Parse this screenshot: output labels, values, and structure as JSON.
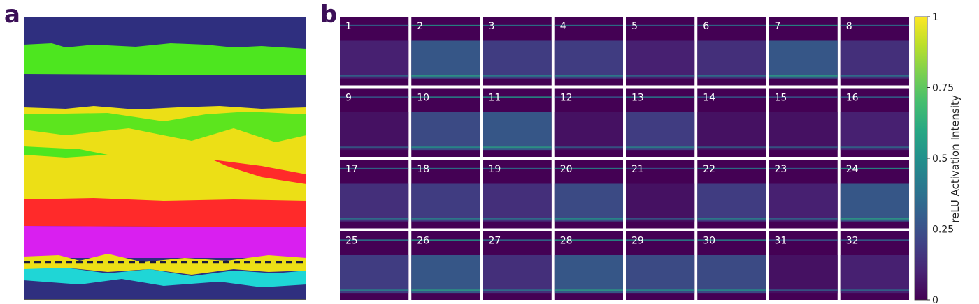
{
  "panel_a": {
    "label": "a"
  },
  "panel_b": {
    "label": "b"
  },
  "chart_data": [
    {
      "type": "heatmap",
      "panel": "a",
      "description_colors": [
        "#2f2f7f",
        "#4de61f",
        "#ecdf16",
        "#ff2a2a",
        "#d91ff0",
        "#1fd6d6"
      ],
      "bands_top_to_bottom": [
        "#2f2f7f",
        "#4de61f",
        "#2f2f7f",
        "#ecdf16",
        "#ff2a2a",
        "#d91ff0",
        "#ecdf16",
        "#1fd6d6",
        "#2f2f7f"
      ],
      "dashed_line": true
    },
    {
      "type": "heatmap",
      "panel": "b",
      "grid": {
        "rows": 4,
        "cols": 8
      },
      "tiles": [
        "1",
        "2",
        "3",
        "4",
        "5",
        "6",
        "7",
        "8",
        "9",
        "10",
        "11",
        "12",
        "13",
        "14",
        "15",
        "16",
        "17",
        "18",
        "19",
        "20",
        "21",
        "22",
        "23",
        "24",
        "25",
        "26",
        "27",
        "28",
        "29",
        "30",
        "31",
        "32"
      ],
      "tile_intensity": [
        0.1,
        0.3,
        0.2,
        0.2,
        0.1,
        0.15,
        0.3,
        0.15,
        0.05,
        0.25,
        0.3,
        0.05,
        0.2,
        0.05,
        0.05,
        0.1,
        0.15,
        0.2,
        0.15,
        0.25,
        0.05,
        0.2,
        0.1,
        0.3,
        0.2,
        0.3,
        0.15,
        0.3,
        0.25,
        0.25,
        0.05,
        0.1
      ],
      "colorbar": {
        "label": "reLU Activation Intensity",
        "ticks": [
          "0",
          "0.25",
          "0.5",
          "0.75",
          "1"
        ],
        "range": [
          0,
          1
        ],
        "colormap": "viridis"
      }
    }
  ]
}
